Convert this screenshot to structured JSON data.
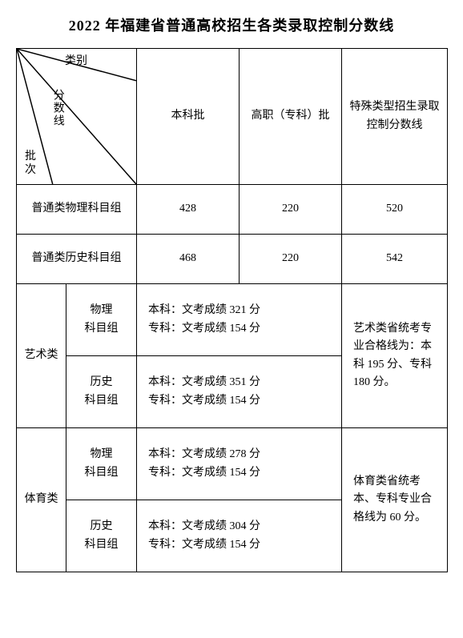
{
  "title": "2022 年福建省普通高校招生各类录取控制分数线",
  "diag": {
    "top": "类别",
    "mid": "分数线",
    "bot": "批\n次"
  },
  "headers": {
    "benke": "本科批",
    "gaozhi": "高职（专科）批",
    "special": "特殊类型招生录取\n控制分数线"
  },
  "rows": {
    "phys_label": "普通类物理科目组",
    "phys": {
      "benke": "428",
      "gaozhi": "220",
      "special": "520"
    },
    "hist_label": "普通类历史科目组",
    "hist": {
      "benke": "468",
      "gaozhi": "220",
      "special": "542"
    }
  },
  "art": {
    "cat": "艺术类",
    "phys_label": "物理\n科目组",
    "phys_text": "本科：文考成绩 321 分\n专科：文考成绩 154 分",
    "hist_label": "历史\n科目组",
    "hist_text": "本科：文考成绩 351 分\n专科：文考成绩 154 分",
    "note": "艺术类省统考专业合格线为：本科 195 分、专科 180 分。"
  },
  "pe": {
    "cat": "体育类",
    "phys_label": "物理\n科目组",
    "phys_text": "本科：文考成绩 278 分\n专科：文考成绩 154 分",
    "hist_label": "历史\n科目组",
    "hist_text": "本科：文考成绩 304 分\n专科：文考成绩 154 分",
    "note": "体育类省统考本、专科专业合格线为 60 分。"
  },
  "style": {
    "border_color": "#000000",
    "background": "#ffffff",
    "title_fontsize": 18,
    "cell_fontsize": 14
  }
}
